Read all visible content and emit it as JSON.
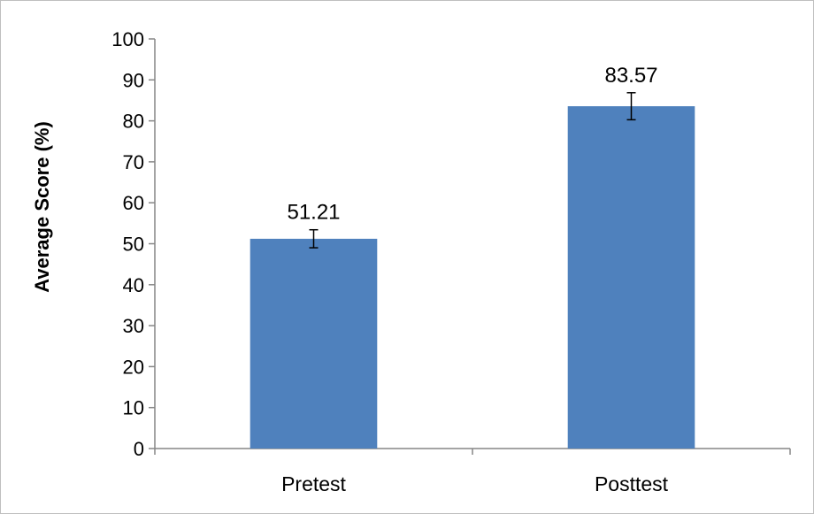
{
  "chart_data": {
    "type": "bar",
    "title": "",
    "xlabel": "",
    "ylabel": "Average Score (%)",
    "ylim": [
      0,
      100
    ],
    "yticks": [
      0,
      10,
      20,
      30,
      40,
      50,
      60,
      70,
      80,
      90,
      100
    ],
    "categories": [
      "Pretest",
      "Posttest"
    ],
    "values": [
      51.21,
      83.57
    ],
    "data_labels": [
      "51.21",
      "83.57"
    ],
    "error": [
      2.2,
      3.3
    ],
    "bar_color": "#4f81bd",
    "grid": false,
    "legend": "none"
  }
}
